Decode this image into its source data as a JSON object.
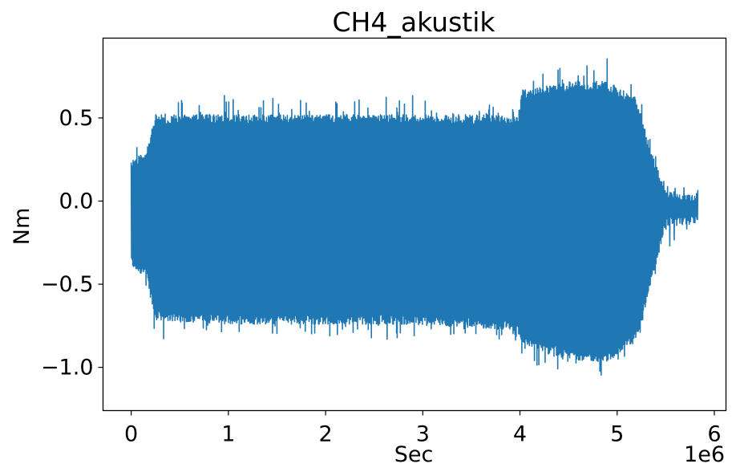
{
  "chart_data": {
    "type": "line",
    "title": "CH4_akustik",
    "xlabel": "Sec",
    "ylabel": "Nm",
    "x_offset_label": "1e6",
    "xlim": [
      -0.29,
      6.12
    ],
    "ylim": [
      -1.26,
      0.98
    ],
    "x_ticks": [
      0,
      1,
      2,
      3,
      4,
      5,
      6
    ],
    "x_tick_labels": [
      "0",
      "1",
      "2",
      "3",
      "4",
      "5",
      "6"
    ],
    "y_ticks": [
      0.5,
      0.0,
      -0.5,
      -1.0
    ],
    "y_tick_labels": [
      "0.5",
      "0.0",
      "−0.5",
      "−1.0"
    ],
    "grid": false,
    "legend": "none",
    "line_color": "#1f77b4",
    "series": [
      {
        "x_range": [
          0,
          5.83
        ],
        "envelope": [
          {
            "x": 0.0,
            "upper": 0.25,
            "lower": -0.4,
            "upper_peak": 0.35,
            "lower_peak": -0.58
          },
          {
            "x": 0.15,
            "upper": 0.3,
            "lower": -0.45,
            "upper_peak": 0.43,
            "lower_peak": -0.55
          },
          {
            "x": 0.25,
            "upper": 0.52,
            "lower": -0.72,
            "upper_peak": 0.62,
            "lower_peak": -0.84
          },
          {
            "x": 1.0,
            "upper": 0.52,
            "lower": -0.74,
            "upper_peak": 0.64,
            "lower_peak": -0.8
          },
          {
            "x": 2.0,
            "upper": 0.52,
            "lower": -0.74,
            "upper_peak": 0.6,
            "lower_peak": -0.82
          },
          {
            "x": 2.7,
            "upper": 0.52,
            "lower": -0.74,
            "upper_peak": 0.66,
            "lower_peak": -0.84
          },
          {
            "x": 3.5,
            "upper": 0.52,
            "lower": -0.76,
            "upper_peak": 0.58,
            "lower_peak": -0.8
          },
          {
            "x": 3.99,
            "upper": 0.52,
            "lower": -0.78,
            "upper_peak": 0.58,
            "lower_peak": -0.85
          },
          {
            "x": 4.02,
            "upper": 0.67,
            "lower": -0.86,
            "upper_peak": 0.73,
            "lower_peak": -0.96
          },
          {
            "x": 4.5,
            "upper": 0.72,
            "lower": -0.95,
            "upper_peak": 0.82,
            "lower_peak": -1.05
          },
          {
            "x": 4.9,
            "upper": 0.72,
            "lower": -0.97,
            "upper_peak": 0.88,
            "lower_peak": -1.15
          },
          {
            "x": 5.2,
            "upper": 0.62,
            "lower": -0.84,
            "upper_peak": 0.72,
            "lower_peak": -0.92
          },
          {
            "x": 5.35,
            "upper": 0.3,
            "lower": -0.5,
            "upper_peak": 0.35,
            "lower_peak": -0.6
          },
          {
            "x": 5.5,
            "upper": 0.06,
            "lower": -0.15,
            "upper_peak": 0.1,
            "lower_peak": -0.3
          },
          {
            "x": 5.83,
            "upper": 0.03,
            "lower": -0.14,
            "upper_peak": 0.1,
            "lower_peak": -0.28
          }
        ]
      }
    ]
  }
}
